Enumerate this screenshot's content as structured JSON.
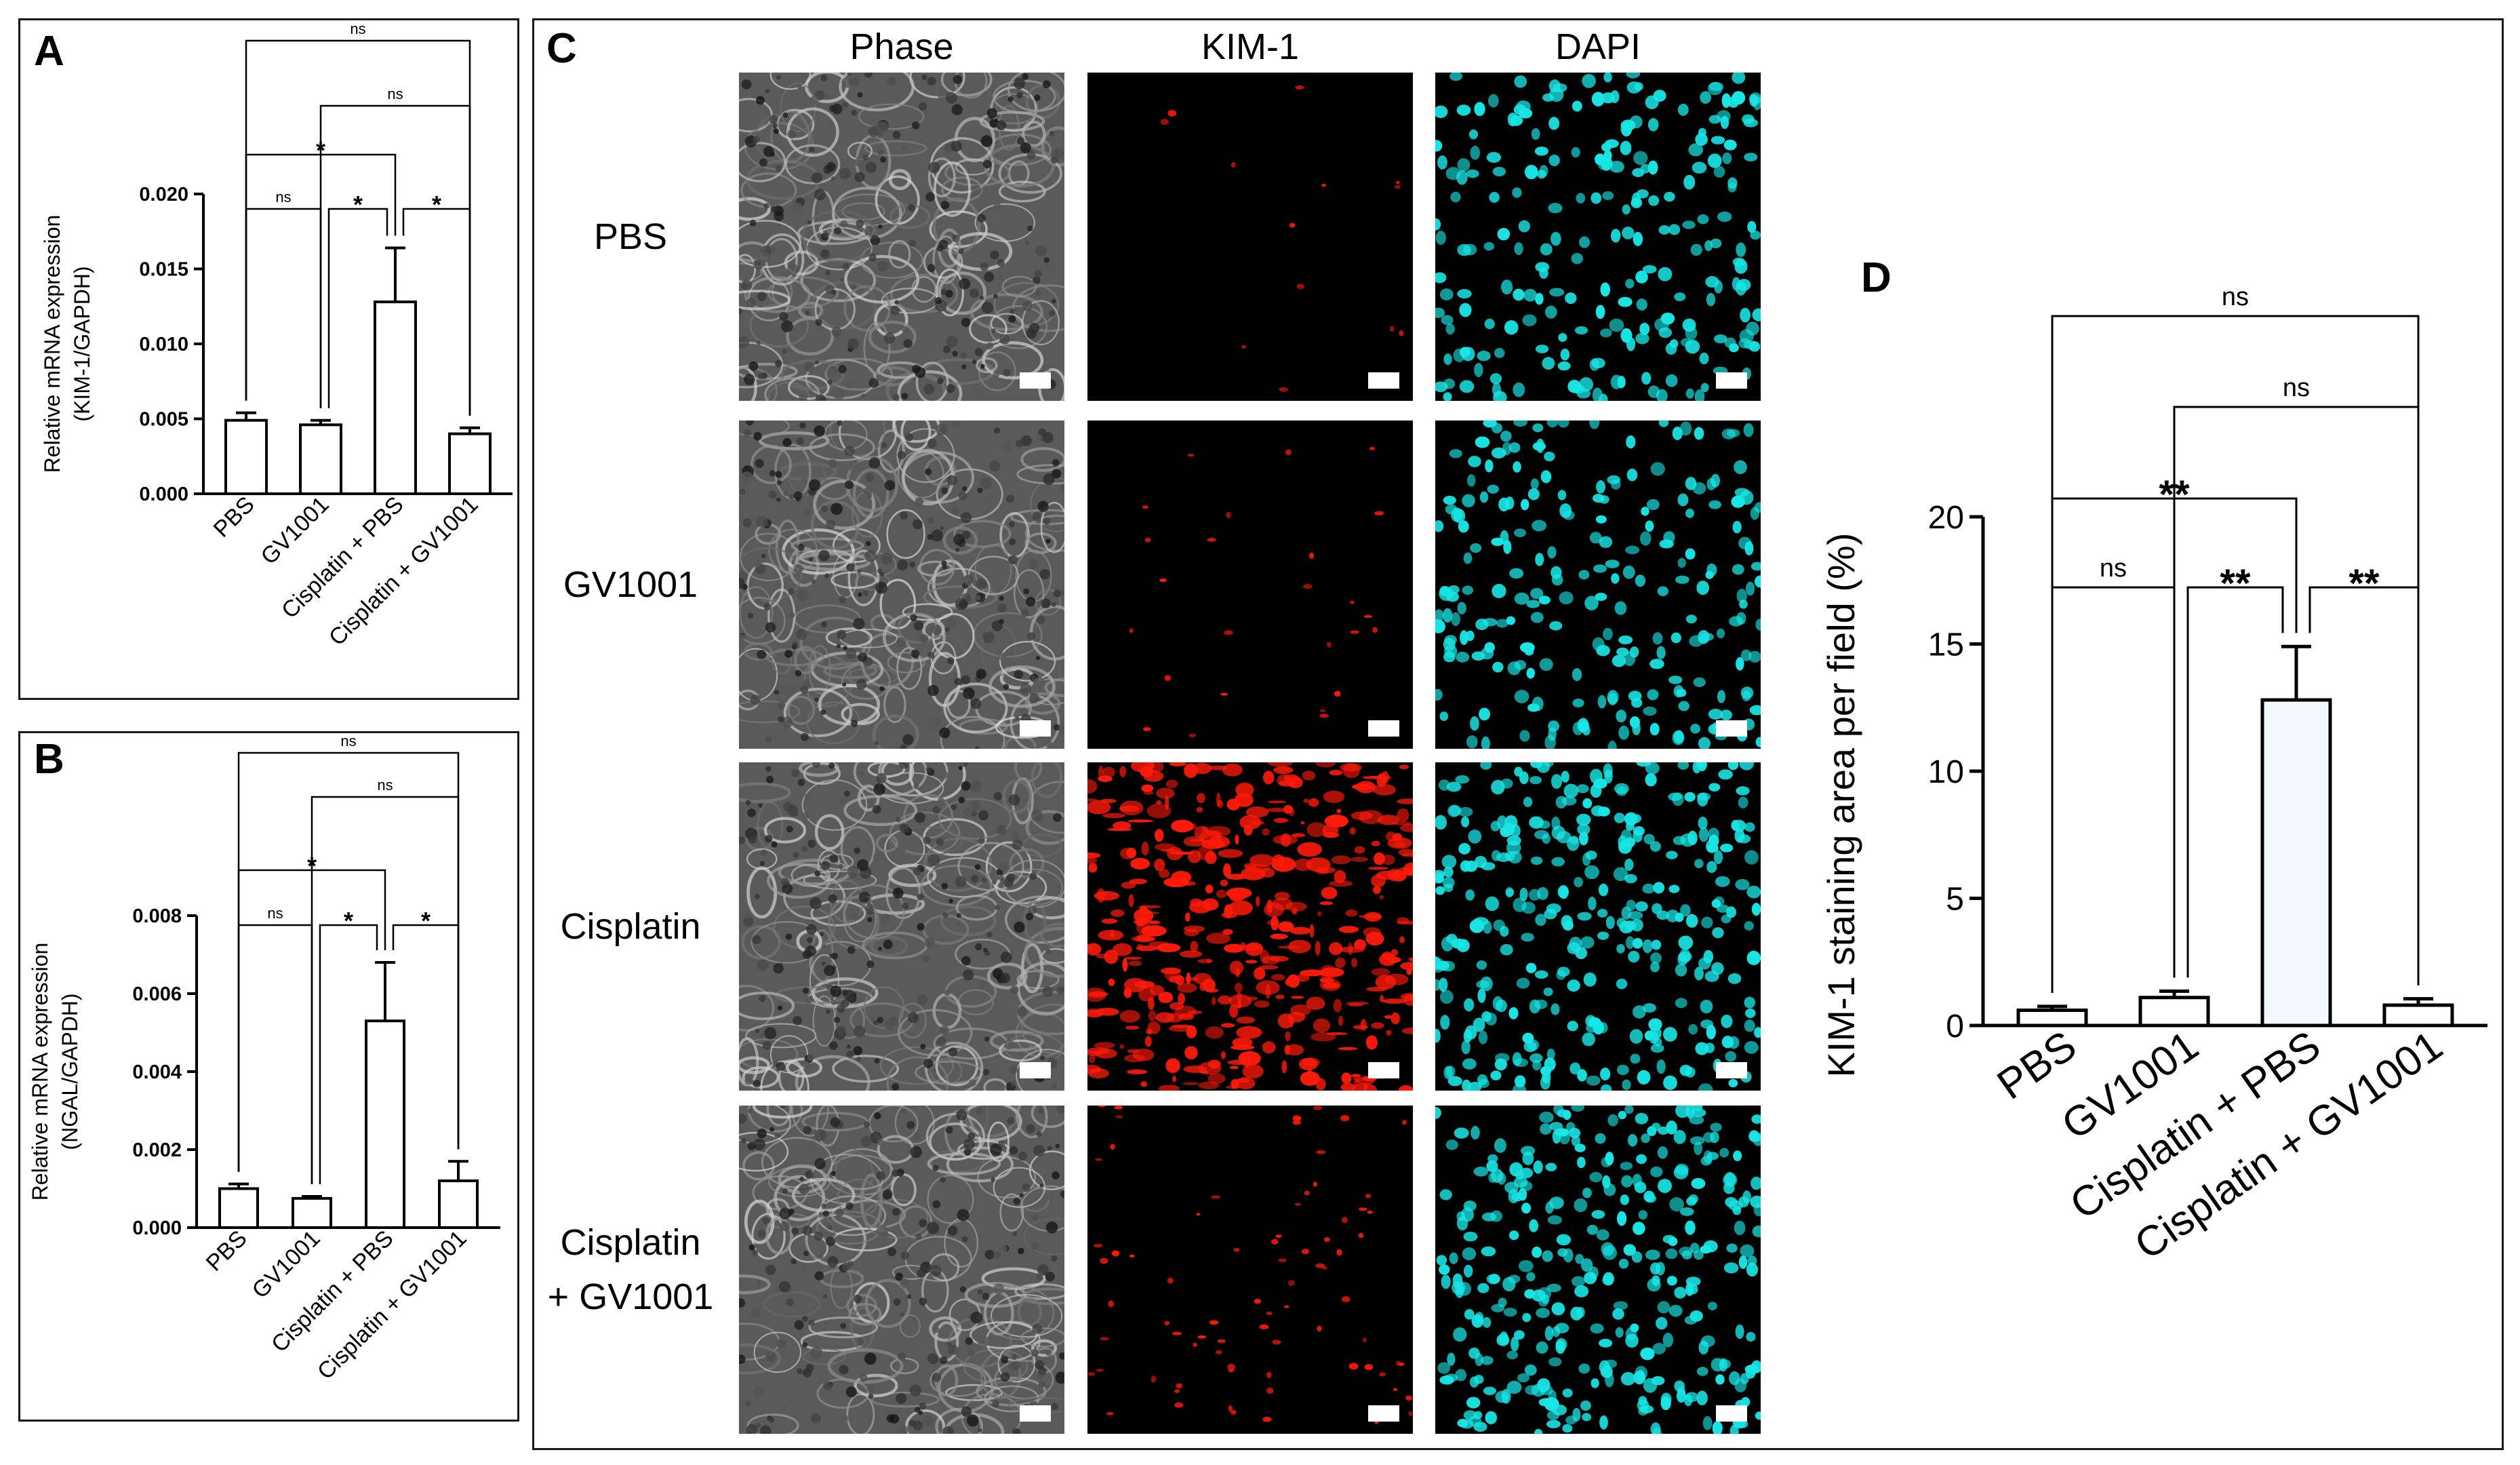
{
  "panels": {
    "A": {
      "letter": "A"
    },
    "B": {
      "letter": "B"
    },
    "C": {
      "letter": "C"
    },
    "D": {
      "letter": "D"
    }
  },
  "microscopy": {
    "columns": [
      "Phase",
      "KIM-1",
      "DAPI"
    ],
    "rows": [
      {
        "label_lines": [
          "PBS"
        ],
        "kim1_level": 0.03
      },
      {
        "label_lines": [
          "GV1001"
        ],
        "kim1_level": 0.06
      },
      {
        "label_lines": [
          "Cisplatin"
        ],
        "kim1_level": 1.0
      },
      {
        "label_lines": [
          "Cisplatin",
          "+ GV1001"
        ],
        "kim1_level": 0.18
      }
    ],
    "colors": {
      "phase": "#8a8a8a",
      "kim1": "#ff1a0a",
      "dapi": "#19e6e6"
    }
  },
  "chart_data": [
    {
      "id": "A",
      "type": "bar",
      "categories": [
        "PBS",
        "GV1001",
        "Cisplatin + PBS",
        "Cisplatin + GV1001"
      ],
      "values": [
        0.0049,
        0.0046,
        0.0128,
        0.004
      ],
      "errors": [
        0.0005,
        0.0003,
        0.0036,
        0.0004
      ],
      "ylabel_lines": [
        "Relative mRNA expression",
        "(KIM-1/GAPDH)"
      ],
      "ylim": [
        0,
        0.02
      ],
      "yticks": [
        0,
        0.005,
        0.01,
        0.015,
        0.02
      ],
      "ytick_labels": [
        "0.000",
        "0.005",
        "0.010",
        "0.015",
        "0.020"
      ],
      "comparisons": [
        {
          "from": 0,
          "to": 1,
          "label": "ns"
        },
        {
          "from": 1,
          "to": 2,
          "label": "*"
        },
        {
          "from": 2,
          "to": 3,
          "label": "*"
        },
        {
          "from": 0,
          "to": 2,
          "label": "*"
        },
        {
          "from": 1,
          "to": 3,
          "label": "ns"
        },
        {
          "from": 0,
          "to": 3,
          "label": "ns"
        }
      ]
    },
    {
      "id": "B",
      "type": "bar",
      "categories": [
        "PBS",
        "GV1001",
        "Cisplatin + PBS",
        "Cisplatin + GV1001"
      ],
      "values": [
        0.001,
        0.00075,
        0.0053,
        0.0012
      ],
      "errors": [
        0.00012,
        5e-05,
        0.0015,
        0.0005
      ],
      "ylabel_lines": [
        "Relative mRNA expression",
        "(NGAL/GAPDH)"
      ],
      "ylim": [
        0,
        0.008
      ],
      "yticks": [
        0,
        0.002,
        0.004,
        0.006,
        0.008
      ],
      "ytick_labels": [
        "0.000",
        "0.002",
        "0.004",
        "0.006",
        "0.008"
      ],
      "comparisons": [
        {
          "from": 0,
          "to": 1,
          "label": "ns"
        },
        {
          "from": 1,
          "to": 2,
          "label": "*"
        },
        {
          "from": 2,
          "to": 3,
          "label": "*"
        },
        {
          "from": 0,
          "to": 2,
          "label": "*"
        },
        {
          "from": 1,
          "to": 3,
          "label": "ns"
        },
        {
          "from": 0,
          "to": 3,
          "label": "ns"
        }
      ]
    },
    {
      "id": "D",
      "type": "bar",
      "categories": [
        "PBS",
        "GV1001",
        "Cisplatin + PBS",
        "Cisplatin + GV1001"
      ],
      "values": [
        0.6,
        1.1,
        12.8,
        0.8
      ],
      "errors": [
        0.15,
        0.25,
        2.1,
        0.25
      ],
      "ylabel": "KIM-1 staining area per field (%)",
      "ylim": [
        0,
        20
      ],
      "yticks": [
        0,
        5,
        10,
        15,
        20
      ],
      "ytick_labels": [
        "0",
        "5",
        "10",
        "15",
        "20"
      ],
      "bar_fills": [
        "#ffffff",
        "#ffffff",
        "#f4f8ff",
        "#ffffff"
      ],
      "comparisons": [
        {
          "from": 0,
          "to": 1,
          "label": "ns"
        },
        {
          "from": 1,
          "to": 2,
          "label": "**"
        },
        {
          "from": 2,
          "to": 3,
          "label": "**"
        },
        {
          "from": 0,
          "to": 2,
          "label": "**"
        },
        {
          "from": 1,
          "to": 3,
          "label": "ns"
        },
        {
          "from": 0,
          "to": 3,
          "label": "ns"
        }
      ]
    }
  ]
}
